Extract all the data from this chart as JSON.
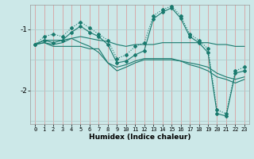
{
  "xlabel": "Humidex (Indice chaleur)",
  "bg_color": "#cce8e8",
  "line_color": "#1a7a6e",
  "red_grid_color": "#d8a0a0",
  "horiz_grid_color": "#b0cccc",
  "xlim": [
    -0.5,
    23.5
  ],
  "ylim": [
    -2.55,
    -0.6
  ],
  "yticks": [
    -2,
    -1
  ],
  "xticks": [
    0,
    1,
    2,
    3,
    4,
    5,
    6,
    7,
    8,
    9,
    10,
    11,
    12,
    13,
    14,
    15,
    16,
    17,
    18,
    19,
    20,
    21,
    22,
    23
  ],
  "line1_solid_flat": [
    -1.25,
    -1.18,
    -1.18,
    -1.18,
    -1.15,
    -1.12,
    -1.15,
    -1.18,
    -1.2,
    -1.25,
    -1.28,
    -1.25,
    -1.25,
    -1.25,
    -1.22,
    -1.22,
    -1.22,
    -1.22,
    -1.22,
    -1.22,
    -1.25,
    -1.25,
    -1.28,
    -1.28
  ],
  "line2_solid_declining": [
    -1.25,
    -1.22,
    -1.25,
    -1.22,
    -1.15,
    -1.22,
    -1.28,
    -1.38,
    -1.55,
    -1.62,
    -1.58,
    -1.52,
    -1.48,
    -1.48,
    -1.48,
    -1.48,
    -1.52,
    -1.55,
    -1.58,
    -1.62,
    -1.72,
    -1.78,
    -1.82,
    -1.78
  ],
  "line3_with_zigzag_markers": [
    -1.25,
    -1.18,
    -1.22,
    -1.18,
    -1.05,
    -0.95,
    -1.05,
    -1.12,
    -1.25,
    -1.55,
    -1.52,
    -1.42,
    -1.35,
    -0.83,
    -0.72,
    -0.65,
    -0.82,
    -1.12,
    -1.22,
    -1.38,
    -2.38,
    -2.42,
    -1.72,
    -1.68
  ],
  "line4_dotted_peak": [
    -1.25,
    -1.12,
    -1.08,
    -1.12,
    -0.98,
    -0.88,
    -0.98,
    -1.08,
    -1.18,
    -1.48,
    -1.42,
    -1.28,
    -1.22,
    -0.78,
    -0.68,
    -0.62,
    -0.78,
    -1.08,
    -1.18,
    -1.32,
    -2.32,
    -2.38,
    -1.68,
    -1.62
  ],
  "line5_solid_low": [
    -1.25,
    -1.22,
    -1.28,
    -1.28,
    -1.28,
    -1.28,
    -1.32,
    -1.32,
    -1.55,
    -1.68,
    -1.62,
    -1.55,
    -1.5,
    -1.5,
    -1.5,
    -1.5,
    -1.52,
    -1.58,
    -1.62,
    -1.68,
    -1.78,
    -1.82,
    -1.88,
    -1.82
  ]
}
